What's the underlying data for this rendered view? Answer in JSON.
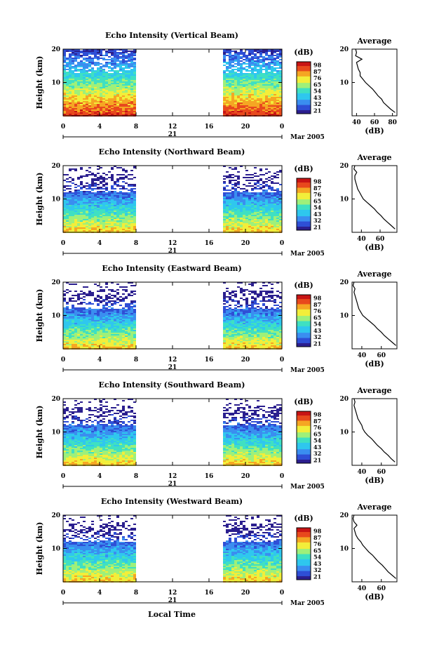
{
  "page": {
    "xlabel": "Local Time"
  },
  "colors": {
    "scale": [
      "#2b1f8f",
      "#2f4fd6",
      "#3a8ef0",
      "#2fc7ee",
      "#3fe0c2",
      "#9ef07a",
      "#f2ee3a",
      "#f5a623",
      "#e8491d",
      "#c81414"
    ],
    "gap": "#ffffff",
    "frame": "#000000",
    "profile": "#000000"
  },
  "chart_data": [
    {
      "type": "heatmap",
      "title": "Echo Intensity (Vertical Beam)",
      "ylabel": "Height (km)",
      "x_ticks": [
        "0",
        "4",
        "8",
        "12",
        "16",
        "20",
        "0"
      ],
      "x_range": [
        0,
        24
      ],
      "ylim": [
        0,
        20
      ],
      "y_ticks": [
        "20",
        "10"
      ],
      "date_day": "21",
      "date_label": "Mar 2005",
      "data_gap_hours": [
        8.3,
        17.5
      ],
      "colorbar": {
        "unit": "(dB)",
        "ticks": [
          "98",
          "87",
          "76",
          "65",
          "54",
          "43",
          "32",
          "21"
        ],
        "range": [
          21,
          98
        ]
      },
      "profile": {
        "title": "Average",
        "xlabel": "(dB)",
        "x_ticks": [
          "40",
          "60",
          "80"
        ],
        "xlim": [
          35,
          85
        ],
        "y_ticks": [
          "20",
          "10"
        ],
        "heights": [
          1,
          2,
          3,
          4,
          5,
          6,
          7,
          8,
          9,
          10,
          11,
          12,
          13,
          14,
          15,
          16,
          17,
          18,
          19,
          20
        ],
        "values": [
          83,
          78,
          74,
          70,
          68,
          64,
          61,
          58,
          54,
          50,
          47,
          44,
          44,
          42,
          41,
          40,
          46,
          39,
          40,
          39
        ]
      }
    },
    {
      "type": "heatmap",
      "title": "Echo Intensity (Northward Beam)",
      "ylabel": "Height (km)",
      "x_ticks": [
        "0",
        "4",
        "8",
        "12",
        "16",
        "20",
        "0"
      ],
      "x_range": [
        0,
        24
      ],
      "ylim": [
        0,
        20
      ],
      "y_ticks": [
        "20",
        "10"
      ],
      "date_day": "21",
      "date_label": "Mar 2005",
      "data_gap_hours": [
        8.3,
        17.5
      ],
      "colorbar": {
        "unit": "(dB)",
        "ticks": [
          "98",
          "87",
          "76",
          "65",
          "54",
          "43",
          "32",
          "21"
        ],
        "range": [
          21,
          98
        ]
      },
      "profile": {
        "title": "Average",
        "xlabel": "(dB)",
        "x_ticks": [
          "40",
          "60"
        ],
        "xlim": [
          30,
          78
        ],
        "y_ticks": [
          "20",
          "10"
        ],
        "heights": [
          1,
          2,
          3,
          4,
          5,
          6,
          7,
          8,
          9,
          10,
          11,
          12,
          13,
          14,
          15,
          16,
          17,
          18,
          19,
          20
        ],
        "values": [
          76,
          72,
          68,
          64,
          61,
          57,
          54,
          50,
          46,
          42,
          40,
          38,
          36,
          35,
          34,
          33,
          33,
          35,
          32,
          33
        ]
      }
    },
    {
      "type": "heatmap",
      "title": "Echo Intensity (Eastward Beam)",
      "ylabel": "Height (km)",
      "x_ticks": [
        "0",
        "4",
        "8",
        "12",
        "16",
        "20",
        "0"
      ],
      "x_range": [
        0,
        24
      ],
      "ylim": [
        0,
        20
      ],
      "y_ticks": [
        "20",
        "10"
      ],
      "date_day": "21",
      "date_label": "Mar 2005",
      "data_gap_hours": [
        8.3,
        17.5
      ],
      "colorbar": {
        "unit": "(dB)",
        "ticks": [
          "98",
          "87",
          "76",
          "65",
          "54",
          "43",
          "32",
          "21"
        ],
        "range": [
          21,
          98
        ]
      },
      "profile": {
        "title": "Average",
        "xlabel": "(dB)",
        "x_ticks": [
          "40",
          "60"
        ],
        "xlim": [
          30,
          76
        ],
        "y_ticks": [
          "20",
          "10"
        ],
        "heights": [
          1,
          2,
          3,
          4,
          5,
          6,
          7,
          8,
          9,
          10,
          11,
          12,
          13,
          14,
          15,
          16,
          17,
          18,
          19,
          20
        ],
        "values": [
          75,
          71,
          67,
          63,
          60,
          56,
          53,
          49,
          45,
          41,
          39,
          37,
          36,
          35,
          34,
          33,
          32,
          33,
          31,
          32
        ]
      }
    },
    {
      "type": "heatmap",
      "title": "Echo Intensity (Southward Beam)",
      "ylabel": "Height (km)",
      "x_ticks": [
        "0",
        "4",
        "8",
        "12",
        "16",
        "20",
        "0"
      ],
      "x_range": [
        0,
        24
      ],
      "ylim": [
        0,
        20
      ],
      "y_ticks": [
        "20",
        "10"
      ],
      "date_day": "21",
      "date_label": "Mar 2005",
      "data_gap_hours": [
        8.3,
        17.5
      ],
      "colorbar": {
        "unit": "(dB)",
        "ticks": [
          "98",
          "87",
          "76",
          "65",
          "54",
          "43",
          "32",
          "21"
        ],
        "range": [
          21,
          98
        ]
      },
      "profile": {
        "title": "Average",
        "xlabel": "(dB)",
        "x_ticks": [
          "40",
          "60"
        ],
        "xlim": [
          30,
          76
        ],
        "y_ticks": [
          "20",
          "10"
        ],
        "heights": [
          1,
          2,
          3,
          4,
          5,
          6,
          7,
          8,
          9,
          10,
          11,
          12,
          13,
          14,
          15,
          16,
          17,
          18,
          19,
          20
        ],
        "values": [
          74,
          70,
          67,
          63,
          60,
          56,
          53,
          50,
          46,
          43,
          41,
          40,
          38,
          36,
          35,
          34,
          33,
          32,
          33,
          32
        ]
      }
    },
    {
      "type": "heatmap",
      "title": "Echo Intensity (Westward Beam)",
      "ylabel": "Height (km)",
      "x_ticks": [
        "0",
        "4",
        "8",
        "12",
        "16",
        "20",
        "0"
      ],
      "x_range": [
        0,
        24
      ],
      "ylim": [
        0,
        20
      ],
      "y_ticks": [
        "20",
        "10"
      ],
      "date_day": "21",
      "date_label": "Mar 2005",
      "data_gap_hours": [
        8.3,
        17.5
      ],
      "colorbar": {
        "unit": "(dB)",
        "ticks": [
          "98",
          "87",
          "76",
          "65",
          "54",
          "43",
          "32",
          "21"
        ],
        "range": [
          21,
          98
        ]
      },
      "profile": {
        "title": "Average",
        "xlabel": "(dB)",
        "x_ticks": [
          "40",
          "60"
        ],
        "xlim": [
          30,
          76
        ],
        "y_ticks": [
          "20",
          "10"
        ],
        "heights": [
          1,
          2,
          3,
          4,
          5,
          6,
          7,
          8,
          9,
          10,
          11,
          12,
          13,
          14,
          15,
          16,
          17,
          18,
          19,
          20
        ],
        "values": [
          75,
          71,
          67,
          64,
          61,
          57,
          54,
          51,
          47,
          44,
          41,
          39,
          36,
          34,
          33,
          32,
          35,
          32,
          31,
          32
        ]
      }
    }
  ]
}
